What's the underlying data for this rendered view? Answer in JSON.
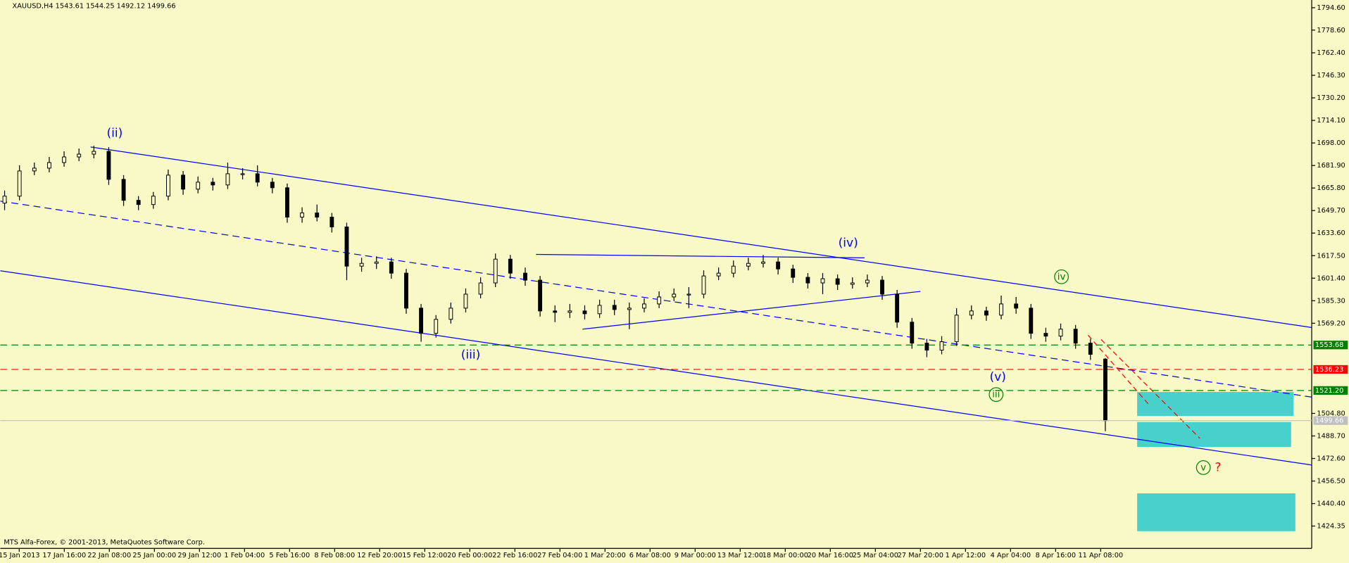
{
  "chart_data": {
    "type": "candlestick",
    "title": "XAUUSD,H4  1543.61 1544.25 1492.12 1499.66",
    "footer": "MTS Alfa-Forex, © 2001-2013, MetaQuotes Software Corp.",
    "ylim": [
      1408.4,
      1800.1
    ],
    "yticks": [
      {
        "value": 1794.6,
        "label": "1794.60"
      },
      {
        "value": 1778.6,
        "label": "1778.60"
      },
      {
        "value": 1762.4,
        "label": "1762.40"
      },
      {
        "value": 1746.3,
        "label": "1746.30"
      },
      {
        "value": 1730.2,
        "label": "1730.20"
      },
      {
        "value": 1714.1,
        "label": "1714.10"
      },
      {
        "value": 1698,
        "label": "1698.00"
      },
      {
        "value": 1681.9,
        "label": "1681.90"
      },
      {
        "value": 1665.8,
        "label": "1665.80"
      },
      {
        "value": 1649.7,
        "label": "1649.70"
      },
      {
        "value": 1633.6,
        "label": "1633.60"
      },
      {
        "value": 1617.5,
        "label": "1617.50"
      },
      {
        "value": 1601.4,
        "label": "1601.40"
      },
      {
        "value": 1585.3,
        "label": "1585.30"
      },
      {
        "value": 1569.2,
        "label": "1569.20"
      },
      {
        "value": 1504.8,
        "label": "1504.80"
      },
      {
        "value": 1488.7,
        "label": "1488.70"
      },
      {
        "value": 1472.6,
        "label": "1472.60"
      },
      {
        "value": 1456.5,
        "label": "1456.50"
      },
      {
        "value": 1440.4,
        "label": "1440.40"
      },
      {
        "value": 1424.35,
        "label": "1424.35"
      }
    ],
    "xticks": [
      "15 Jan 2013",
      "17 Jan 16:00",
      "22 Jan 08:00",
      "25 Jan 00:00",
      "29 Jan 12:00",
      "1 Feb 04:00",
      "5 Feb 16:00",
      "8 Feb 08:00",
      "12 Feb 20:00",
      "15 Feb 12:00",
      "20 Feb 00:00",
      "22 Feb 16:00",
      "27 Feb 04:00",
      "1 Mar 20:00",
      "6 Mar 08:00",
      "9 Mar 00:00",
      "13 Mar 12:00",
      "18 Mar 00:00",
      "20 Mar 16:00",
      "25 Mar 04:00",
      "27 Mar 20:00",
      "1 Apr 12:00",
      "4 Apr 04:00",
      "8 Apr 16:00",
      "11 Apr 08:00"
    ],
    "levels": [
      {
        "value": 1553.68,
        "label": "1553.68",
        "color": "#008000"
      },
      {
        "value": 1536.23,
        "label": "1536.23",
        "color": "#ff0000"
      },
      {
        "value": 1521.2,
        "label": "1521.20",
        "color": "#008000"
      }
    ],
    "annotations": [
      "(ii)",
      "(iii)",
      "(iv)",
      "(v)",
      "iii",
      "iv",
      "v",
      "?"
    ],
    "series": [
      {
        "color": "#000000",
        "open": [
          1655,
          1660,
          1678,
          1680,
          1684,
          1688,
          1690,
          1692,
          1672,
          1657,
          1654,
          1660,
          1675,
          1665,
          1670,
          1668,
          1676,
          1676,
          1670,
          1666,
          1645,
          1648,
          1645,
          1638,
          1610,
          1612,
          1613,
          1605,
          1580,
          1562,
          1572,
          1580,
          1590,
          1598,
          1615,
          1605,
          1600,
          1578,
          1577,
          1578,
          1576,
          1582,
          1579,
          1580,
          1583,
          1588,
          1590,
          1590,
          1603,
          1605,
          1610,
          1612,
          1613,
          1608,
          1602,
          1598,
          1601,
          1597,
          1598,
          1600,
          1590,
          1570,
          1555,
          1550,
          1556,
          1575,
          1578,
          1575,
          1583,
          1580,
          1562,
          1560,
          1565,
          1555,
          1543.61
        ],
        "high": [
          1664,
          1682,
          1684,
          1688,
          1692,
          1694,
          1696,
          1695,
          1675,
          1660,
          1663,
          1679,
          1678,
          1674,
          1673,
          1684,
          1680,
          1682,
          1673,
          1669,
          1652,
          1654,
          1648,
          1641,
          1616,
          1617,
          1616,
          1608,
          1583,
          1575,
          1584,
          1594,
          1602,
          1619,
          1618,
          1609,
          1603,
          1582,
          1583,
          1582,
          1586,
          1586,
          1584,
          1587,
          1592,
          1594,
          1595,
          1607,
          1609,
          1614,
          1616,
          1618,
          1616,
          1611,
          1605,
          1605,
          1604,
          1602,
          1604,
          1603,
          1593,
          1573,
          1558,
          1560,
          1580,
          1582,
          1581,
          1589,
          1588,
          1583,
          1566,
          1569,
          1568,
          1558,
          1544.25
        ],
        "low": [
          1650,
          1657,
          1675,
          1677,
          1681,
          1685,
          1687,
          1668,
          1653,
          1650,
          1651,
          1657,
          1661,
          1662,
          1664,
          1665,
          1672,
          1667,
          1662,
          1641,
          1641,
          1642,
          1634,
          1600,
          1606,
          1608,
          1601,
          1576,
          1556,
          1559,
          1569,
          1577,
          1587,
          1595,
          1601,
          1596,
          1574,
          1570,
          1573,
          1572,
          1573,
          1575,
          1565,
          1577,
          1580,
          1585,
          1580,
          1587,
          1600,
          1602,
          1607,
          1609,
          1604,
          1598,
          1594,
          1590,
          1593,
          1594,
          1595,
          1586,
          1566,
          1551,
          1545,
          1547,
          1553,
          1572,
          1571,
          1572,
          1576,
          1558,
          1556,
          1557,
          1551,
          1543,
          1492.12
        ],
        "close": [
          1660,
          1678,
          1680,
          1684,
          1688,
          1690,
          1692,
          1672,
          1657,
          1654,
          1660,
          1675,
          1665,
          1670,
          1668,
          1676,
          1676,
          1670,
          1666,
          1645,
          1648,
          1645,
          1638,
          1610,
          1612,
          1613,
          1605,
          1580,
          1562,
          1572,
          1580,
          1590,
          1598,
          1615,
          1605,
          1600,
          1578,
          1577,
          1578,
          1576,
          1582,
          1579,
          1580,
          1583,
          1588,
          1590,
          1590,
          1603,
          1605,
          1610,
          1612,
          1613,
          1608,
          1602,
          1598,
          1601,
          1597,
          1598,
          1600,
          1590,
          1570,
          1555,
          1550,
          1556,
          1575,
          1578,
          1575,
          1583,
          1580,
          1562,
          1560,
          1565,
          1555,
          1547,
          1499.66
        ]
      }
    ]
  }
}
